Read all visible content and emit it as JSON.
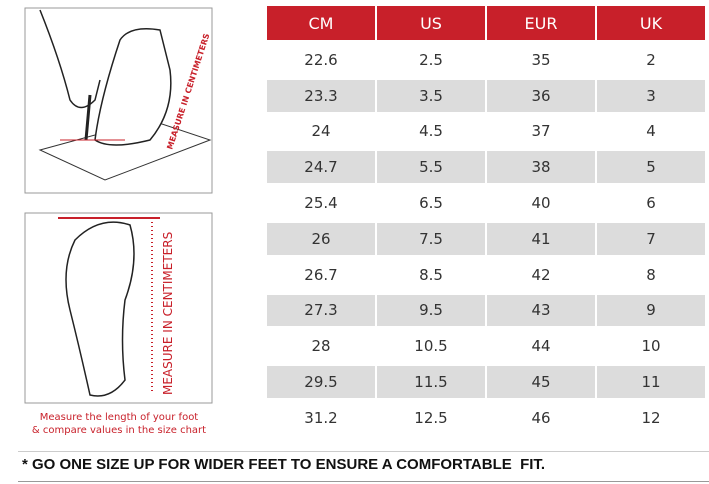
{
  "illustration": {
    "label_top": "MEASURE IN CENTIMETERS",
    "label_side": "MEASURE IN CENTIMETERS",
    "caption_line1": "Measure the length of your foot",
    "caption_line2": "& compare values in the size chart"
  },
  "table": {
    "header": [
      "CM",
      "US",
      "EUR",
      "UK"
    ],
    "rows": [
      [
        "22.6",
        "2.5",
        "35",
        "2"
      ],
      [
        "23.3",
        "3.5",
        "36",
        "3"
      ],
      [
        "24",
        "4.5",
        "37",
        "4"
      ],
      [
        "24.7",
        "5.5",
        "38",
        "5"
      ],
      [
        "25.4",
        "6.5",
        "40",
        "6"
      ],
      [
        "26",
        "7.5",
        "41",
        "7"
      ],
      [
        "26.7",
        "8.5",
        "42",
        "8"
      ],
      [
        "27.3",
        "9.5",
        "43",
        "9"
      ],
      [
        "28",
        "10.5",
        "44",
        "10"
      ],
      [
        "29.5",
        "11.5",
        "45",
        "11"
      ],
      [
        "31.2",
        "12.5",
        "46",
        "12"
      ]
    ]
  },
  "footer": {
    "note": "* GO ONE SIZE UP FOR WIDER FEET TO ENSURE A COMFORTABLE  FIT."
  }
}
